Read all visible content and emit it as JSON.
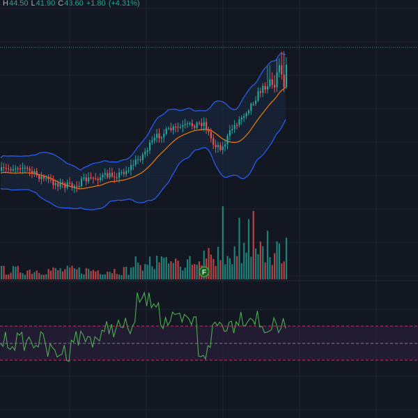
{
  "ohlc": {
    "high_key": "H",
    "high_value": "44.50",
    "low_key": "L",
    "low_value": "41.90",
    "close_key": "C",
    "close_value": "43.60",
    "change": "+1.80",
    "change_pct": "(+4.31%)"
  },
  "colors": {
    "background": "#131722",
    "grid": "#1f2433",
    "up": "#26a69a",
    "down": "#ef5350",
    "bollinger_band": "#2962ff",
    "bollinger_fill": "#1c2a44",
    "basis": "#f57c00",
    "indicator_line": "#4caf50",
    "indicator_band": "#e91e63",
    "indicator_fill": "#2a1f3a",
    "price_line": "#26a69a"
  },
  "event_marker": {
    "label": "F",
    "icon": "financials-event-icon"
  },
  "chart_data": {
    "type": "candlestick",
    "panes": [
      "price",
      "volume",
      "oscillator"
    ],
    "overlays": [
      "bollinger_bands",
      "moving_average"
    ],
    "last_price": 43.6,
    "oscillator_bands": [
      "upper",
      "middle",
      "lower"
    ]
  }
}
